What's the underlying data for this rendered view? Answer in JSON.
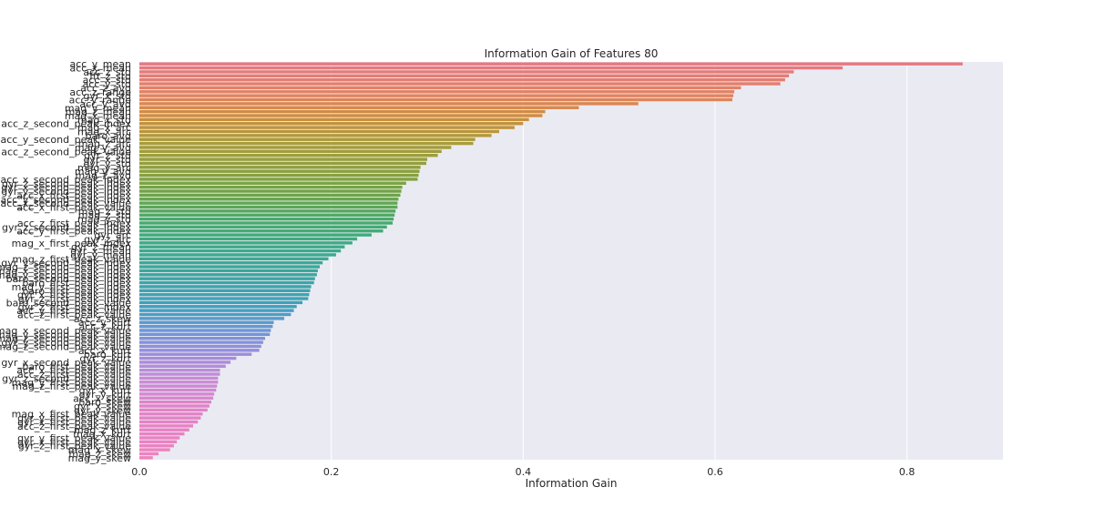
{
  "chart_data": {
    "type": "bar",
    "orientation": "horizontal",
    "title": "Information Gain of Features 80",
    "xlabel": "Information Gain",
    "ylabel": "",
    "xlim": [
      0,
      0.9
    ],
    "xticks": [
      "0.0",
      "0.2",
      "0.4",
      "0.6",
      "0.8"
    ],
    "grid": true,
    "legend": "none",
    "categories": [
      "acc_y_mean",
      "acc_x_mean",
      "acc_z_std",
      "fft_z_std",
      "acc_x_std",
      "acc_y_std",
      "acc_z_avd",
      "acc_z_range",
      "gyr_x_std",
      "acc_y_range",
      "acc_y_avd",
      "mag_y_mean",
      "mag_z_mean",
      "mag_x_mean",
      "mag_x_std",
      "acc_z_second_peak_index",
      "mag_x_arc",
      "mag_x_arc",
      "baro_avd",
      "acc_y_second_peak_value",
      "mag_z_arc",
      "mag_y_avd",
      "acc_z_second_peak_value",
      "gyr_z_std",
      "gyr_x_std",
      "gyr_y_std",
      "mag_y_arc",
      "mag_y_avd",
      "mag_z_avd",
      "acc_x_second_peak_index",
      "gyr_z_second_peak_index",
      "gyr_x_second_peak_index",
      "gyr_y_second_peak_index",
      "acc_x_first_peak_index",
      "acc_y_second_peak_index",
      "acc_x_second_peak_value",
      "acc_x_first_peak_value",
      "mag_z_std",
      "mag_z_std",
      "mag_y_std",
      "acc_z_first_peak_index",
      "gyr_z_second_peak_index",
      "acc_y_first_peak_index",
      "gyr_arc",
      "gyr_z_arc",
      "mag_x_first_peak_index",
      "gyr_z_mean",
      "gyr_x_mean",
      "gyr_y_mean",
      "mag_z_first_peak_value",
      "gyr_y_second_peak_index",
      "mag_z_second_peak_index",
      "mag_x_second_peak_index",
      "mag_y_second_peak_index",
      "baro_second_peak_index",
      "baro_first_peak_index",
      "mag_y_first_peak_index",
      "baro_first_peak_index",
      "gyr_x_first_peak_index",
      "gyr_z_first_peak_index",
      "baro_second_peak_value",
      "gyr_z_first_peak_index",
      "acc_y_first_peak_value",
      "acc_z_first_peak_value",
      "acc_z_skew",
      "acc_y_kurt",
      "acc_z_kurt",
      "mag_x_second_peak_value",
      "mag_y_second_peak_value",
      "mag_z_second_peak_value",
      "gyr_y_second_peak_value",
      "mag_z_second_peak_value",
      "acc_x_kurt",
      "baro_kurt",
      "gyr_z_kurt",
      "gyr_x_second_peak_value",
      "baro_first_peak_value",
      "acc_x_first_peak_value",
      "acc_z_first_peak_value",
      "gyr_z_second_peak_value",
      "mag_y_first_peak_value",
      "mag_z_first_peak_value",
      "gyr_x_kurt",
      "gyr_y_kurt",
      "acc_x_skew",
      "baro_skew",
      "gyr_x_skew",
      "gyr_y_skew",
      "mag_x_first_peak_value",
      "gyr_y_first_peak_value",
      "gyr_x_first_peak_value",
      "acc_z_first_peak_value",
      "mag_z_kurt",
      "mag_x_kurt",
      "gyr_y_first_peak_value",
      "gyr_x_first_peak_value",
      "gyr_z_first_peak_value",
      "mag_x_skew",
      "mag_z_skew",
      "mag_y_skew"
    ],
    "values": [
      0.858,
      0.733,
      0.682,
      0.677,
      0.673,
      0.668,
      0.627,
      0.62,
      0.619,
      0.618,
      0.52,
      0.458,
      0.423,
      0.42,
      0.406,
      0.4,
      0.391,
      0.375,
      0.367,
      0.35,
      0.348,
      0.325,
      0.315,
      0.311,
      0.3,
      0.299,
      0.293,
      0.292,
      0.291,
      0.29,
      0.278,
      0.274,
      0.273,
      0.272,
      0.27,
      0.269,
      0.269,
      0.267,
      0.266,
      0.265,
      0.264,
      0.258,
      0.254,
      0.242,
      0.227,
      0.222,
      0.214,
      0.21,
      0.205,
      0.197,
      0.191,
      0.188,
      0.186,
      0.185,
      0.183,
      0.182,
      0.179,
      0.178,
      0.177,
      0.176,
      0.17,
      0.164,
      0.161,
      0.158,
      0.151,
      0.14,
      0.139,
      0.137,
      0.136,
      0.131,
      0.129,
      0.127,
      0.125,
      0.117,
      0.101,
      0.095,
      0.09,
      0.084,
      0.084,
      0.082,
      0.082,
      0.081,
      0.08,
      0.078,
      0.077,
      0.075,
      0.073,
      0.071,
      0.066,
      0.064,
      0.061,
      0.056,
      0.052,
      0.047,
      0.042,
      0.039,
      0.036,
      0.032,
      0.02,
      0.014
    ]
  }
}
